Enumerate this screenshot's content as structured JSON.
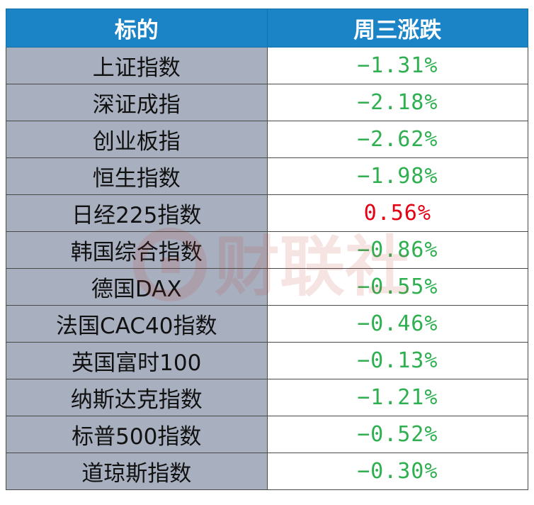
{
  "header": {
    "col_name": "标的",
    "col_change": "周三涨跌"
  },
  "rows": [
    {
      "name": "上证指数",
      "change": "−1.31%",
      "direction": "down"
    },
    {
      "name": "深证成指",
      "change": "−2.18%",
      "direction": "down"
    },
    {
      "name": "创业板指",
      "change": "−2.62%",
      "direction": "down"
    },
    {
      "name": "恒生指数",
      "change": "−1.98%",
      "direction": "down"
    },
    {
      "name": "日经225指数",
      "change": "0.56%",
      "direction": "up"
    },
    {
      "name": "韩国综合指数",
      "change": "−0.86%",
      "direction": "down"
    },
    {
      "name": "德国DAX",
      "change": "−0.55%",
      "direction": "down"
    },
    {
      "name": "法国CAC40指数",
      "change": "−0.46%",
      "direction": "down"
    },
    {
      "name": "英国富时100",
      "change": "−0.13%",
      "direction": "down"
    },
    {
      "name": "纳斯达克指数",
      "change": "−1.21%",
      "direction": "down"
    },
    {
      "name": "标普500指数",
      "change": "−0.52%",
      "direction": "down"
    },
    {
      "name": "道琼斯指数",
      "change": "−0.30%",
      "direction": "down"
    }
  ],
  "colors": {
    "header_bg": "#1a84c7",
    "name_bg": "#a8afbf",
    "down": "#2fb050",
    "up": "#e60012"
  },
  "watermark": {
    "text": "财联社"
  }
}
